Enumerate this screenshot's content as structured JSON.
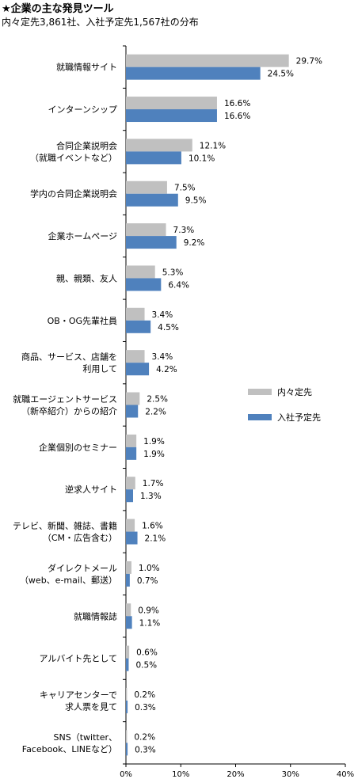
{
  "header": {
    "title": "★企業の主な発見ツール",
    "subtitle": "内々定先3,861社、入社予定先1,567社の分布"
  },
  "chart_data": {
    "type": "bar",
    "orientation": "horizontal",
    "categories": [
      [
        "就職情報サイト"
      ],
      [
        "インターンシップ"
      ],
      [
        "合同企業説明会",
        "（就職イベントなど）"
      ],
      [
        "学内の合同企業説明会"
      ],
      [
        "企業ホームページ"
      ],
      [
        "親、親類、友人"
      ],
      [
        "OB・OG先輩社員"
      ],
      [
        "商品、サービス、店舗を",
        "利用して"
      ],
      [
        "就職エージェントサービス",
        "（新卒紹介）からの紹介"
      ],
      [
        "企業個別のセミナー"
      ],
      [
        "逆求人サイト"
      ],
      [
        "テレビ、新聞、雑誌、書籍",
        "（CM・広告含む）"
      ],
      [
        "ダイレクトメール",
        "（web、e-mail、郵送）"
      ],
      [
        "就職情報誌"
      ],
      [
        "アルバイト先として"
      ],
      [
        "キャリアセンターで",
        "求人票を見て"
      ],
      [
        "SNS（twitter、",
        "Facebook、LINEなど）"
      ]
    ],
    "series": [
      {
        "name": "内々定先",
        "color": "#c0c0c0",
        "values": [
          29.7,
          16.6,
          12.1,
          7.5,
          7.3,
          5.3,
          3.4,
          3.4,
          2.5,
          1.9,
          1.7,
          1.6,
          1.0,
          0.9,
          0.6,
          0.2,
          0.2
        ],
        "labels": [
          "29.7%",
          "16.6%",
          "12.1%",
          "7.5%",
          "7.3%",
          "5.3%",
          "3.4%",
          "3.4%",
          "2.5%",
          "1.9%",
          "1.7%",
          "1.6%",
          "1.0%",
          "0.9%",
          "0.6%",
          "0.2%",
          "0.2%"
        ]
      },
      {
        "name": "入社予定先",
        "color": "#4f81bd",
        "values": [
          24.5,
          16.6,
          10.1,
          9.5,
          9.2,
          6.4,
          4.5,
          4.2,
          2.2,
          1.9,
          1.3,
          2.1,
          0.7,
          1.1,
          0.5,
          0.3,
          0.3
        ],
        "labels": [
          "24.5%",
          "16.6%",
          "10.1%",
          "9.5%",
          "9.2%",
          "6.4%",
          "4.5%",
          "4.2%",
          "2.2%",
          "1.9%",
          "1.3%",
          "2.1%",
          "0.7%",
          "1.1%",
          "0.5%",
          "0.3%",
          "0.3%"
        ]
      }
    ],
    "xlim": [
      0,
      40
    ],
    "ticks": [
      "0%",
      "10%",
      "20%",
      "30%",
      "40%"
    ],
    "grid": false,
    "legend": "right"
  }
}
